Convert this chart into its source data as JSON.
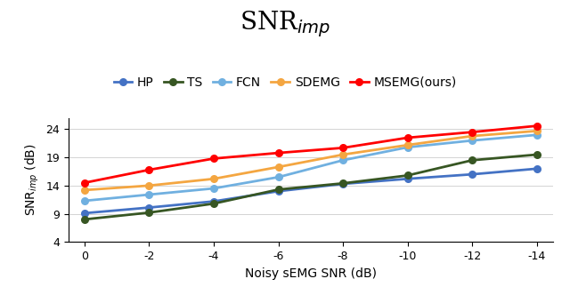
{
  "x": [
    0,
    -2,
    -4,
    -6,
    -8,
    -10,
    -12,
    -14
  ],
  "series_order": [
    "HP",
    "TS",
    "FCN",
    "SDEMG",
    "MSEMG(ours)"
  ],
  "series": {
    "HP": [
      9.1,
      10.1,
      11.2,
      13.0,
      14.3,
      15.2,
      16.0,
      17.0
    ],
    "TS": [
      8.0,
      9.2,
      10.8,
      13.3,
      14.4,
      15.8,
      18.5,
      19.5
    ],
    "FCN": [
      11.3,
      12.4,
      13.5,
      15.5,
      18.5,
      20.8,
      22.0,
      23.0
    ],
    "SDEMG": [
      13.2,
      14.0,
      15.2,
      17.3,
      19.5,
      21.2,
      22.8,
      23.7
    ],
    "MSEMG(ours)": [
      14.5,
      16.8,
      18.8,
      19.8,
      20.7,
      22.5,
      23.5,
      24.6
    ]
  },
  "colors": {
    "HP": "#4472C4",
    "TS": "#375623",
    "FCN": "#70B0E0",
    "SDEMG": "#F4A641",
    "MSEMG(ours)": "#FF0000"
  },
  "title": "SNR$_{imp}$",
  "xlabel": "Noisy sEMG SNR (dB)",
  "ylabel": "SNR$_{imp}$ (dB)",
  "yticks": [
    4,
    9,
    14,
    19,
    24
  ],
  "xticks": [
    0,
    -2,
    -4,
    -6,
    -8,
    -10,
    -12,
    -14
  ],
  "ylim": [
    4,
    26
  ],
  "xlim": [
    0.5,
    -14.5
  ],
  "title_fontsize": 20,
  "legend_fontsize": 10,
  "axis_fontsize": 10,
  "tick_fontsize": 9
}
